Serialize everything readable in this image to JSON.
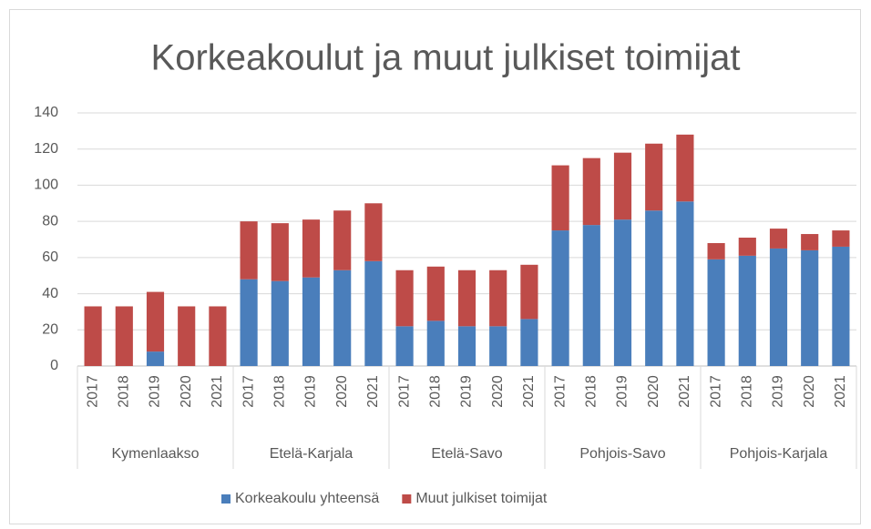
{
  "chart_data": {
    "type": "stacked-bar",
    "title": "Korkeakoulut ja muut julkiset toimijat",
    "groups": [
      "Kymenlaakso",
      "Etelä-Karjala",
      "Etelä-Savo",
      "Pohjois-Savo",
      "Pohjois-Karjala"
    ],
    "categories": [
      "2017",
      "2018",
      "2019",
      "2020",
      "2021",
      "2017",
      "2018",
      "2019",
      "2020",
      "2021",
      "2017",
      "2018",
      "2019",
      "2020",
      "2021",
      "2017",
      "2018",
      "2019",
      "2020",
      "2021",
      "2017",
      "2018",
      "2019",
      "2020",
      "2021"
    ],
    "series": [
      {
        "name": "Korkeakoulu yhteensä",
        "color": "#4a7ebb",
        "values": [
          0,
          0,
          8,
          0,
          0,
          48,
          47,
          49,
          53,
          58,
          22,
          25,
          22,
          22,
          26,
          75,
          78,
          81,
          86,
          91,
          59,
          61,
          65,
          64,
          66
        ]
      },
      {
        "name": "Muut julkiset toimijat",
        "color": "#be4b48",
        "values": [
          33,
          33,
          33,
          33,
          33,
          32,
          32,
          32,
          33,
          32,
          31,
          30,
          31,
          31,
          30,
          36,
          37,
          37,
          37,
          37,
          9,
          10,
          11,
          9,
          9
        ]
      }
    ],
    "ylim": [
      0,
      140
    ],
    "yticks": [
      0,
      20,
      40,
      60,
      80,
      100,
      120,
      140
    ],
    "grid": true,
    "legend": "bottom"
  }
}
